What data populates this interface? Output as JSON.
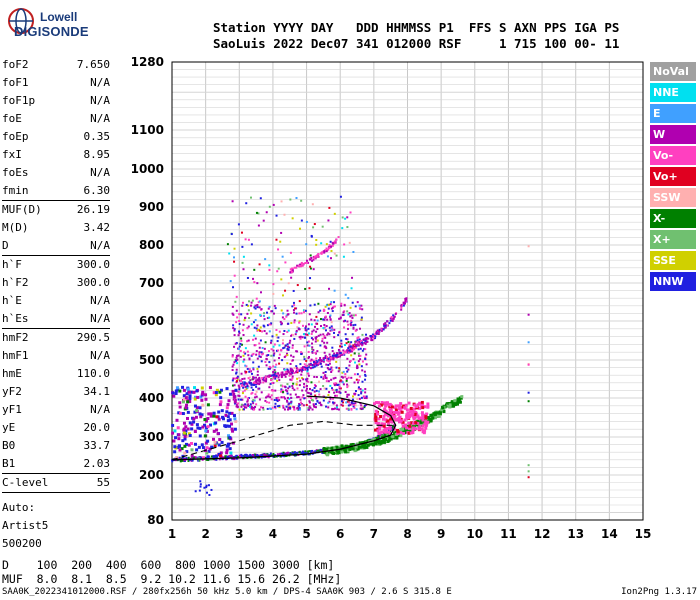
{
  "logo": {
    "line1": "Lowell",
    "line2": "DIGISONDE"
  },
  "header": {
    "labels": "Station YYYY DAY   DDD HHMMSS P1  FFS S AXN PPS IGA PS",
    "values": "SaoLuis 2022 Dec07 341 012000 RSF     1 715 100 00- 11"
  },
  "params": [
    {
      "k": "foF2",
      "v": "7.650"
    },
    {
      "k": "foF1",
      "v": "N/A"
    },
    {
      "k": "foF1p",
      "v": "N/A"
    },
    {
      "k": "foE",
      "v": "N/A"
    },
    {
      "k": "foEp",
      "v": "0.35"
    },
    {
      "k": "fxI",
      "v": "8.95"
    },
    {
      "k": "foEs",
      "v": "N/A"
    },
    {
      "k": "fmin",
      "v": "6.30",
      "sep": true
    },
    {
      "k": "MUF(D)",
      "v": "26.19"
    },
    {
      "k": "M(D)",
      "v": "3.42"
    },
    {
      "k": "D",
      "v": "N/A",
      "sep": true
    },
    {
      "k": "h`F",
      "v": "300.0"
    },
    {
      "k": "h`F2",
      "v": "300.0"
    },
    {
      "k": "h`E",
      "v": "N/A"
    },
    {
      "k": "h`Es",
      "v": "N/A",
      "sep": true
    },
    {
      "k": "hmF2",
      "v": "290.5"
    },
    {
      "k": "hmF1",
      "v": "N/A"
    },
    {
      "k": "hmE",
      "v": "110.0"
    },
    {
      "k": "yF2",
      "v": "34.1"
    },
    {
      "k": "yF1",
      "v": "N/A"
    },
    {
      "k": "yE",
      "v": "20.0"
    },
    {
      "k": "B0",
      "v": "33.7"
    },
    {
      "k": "B1",
      "v": "2.03",
      "sep": true
    },
    {
      "k": "C-level",
      "v": "55",
      "sep": true
    }
  ],
  "auto": [
    "Auto:",
    "Artist5",
    "500200"
  ],
  "legend": [
    {
      "label": "NoVal",
      "color": "#a0a0a0"
    },
    {
      "label": "NNE",
      "color": "#00e0f0"
    },
    {
      "label": "E",
      "color": "#40a0ff"
    },
    {
      "label": "W",
      "color": "#b000b0"
    },
    {
      "label": "Vo-",
      "color": "#ff40c0"
    },
    {
      "label": "Vo+",
      "color": "#e00020"
    },
    {
      "label": "SSW",
      "color": "#ffb0b0"
    },
    {
      "label": "X-",
      "color": "#008000"
    },
    {
      "label": "X+",
      "color": "#70c070"
    },
    {
      "label": "SSE",
      "color": "#d0d000"
    },
    {
      "label": "NNW",
      "color": "#2020e0"
    }
  ],
  "footer": {
    "line1": "D    100  200  400  600  800 1000 1500 3000 [km]",
    "line2": "MUF  8.0  8.1  8.5  9.2 10.2 11.6 15.6 26.2 [MHz]",
    "line3": "SAA0K_2022341012000.RSF / 280fx256h 50 kHz 5.0 km / DPS-4 SAA0K 903 / 2.6 S 315.8 E",
    "version": "Ion2Png 1.3.17"
  },
  "chart_data": {
    "type": "scatter",
    "title": "",
    "xlabel": "",
    "ylabel": "",
    "xlim": [
      1,
      15
    ],
    "ylim": [
      80,
      1280
    ],
    "grid": true,
    "x_ticks": [
      1,
      2,
      3,
      4,
      5,
      6,
      7,
      8,
      9,
      10,
      11,
      12,
      13,
      14,
      15
    ],
    "y_ticks": [
      80,
      200,
      300,
      400,
      500,
      600,
      700,
      800,
      900,
      1000,
      1100,
      1280
    ],
    "y_scale": "nonlinear",
    "o_trace": [
      [
        1.0,
        240
      ],
      [
        2.0,
        243
      ],
      [
        3.0,
        248
      ],
      [
        4.0,
        252
      ],
      [
        5.0,
        258
      ],
      [
        6.0,
        268
      ],
      [
        6.5,
        278
      ],
      [
        7.0,
        292
      ],
      [
        7.4,
        310
      ],
      [
        7.65,
        330
      ]
    ],
    "x_trace": [
      [
        5.5,
        262
      ],
      [
        6.5,
        275
      ],
      [
        7.5,
        300
      ],
      [
        8.2,
        330
      ],
      [
        8.8,
        355
      ],
      [
        9.2,
        380
      ],
      [
        9.6,
        400
      ]
    ],
    "multi_hop": [
      [
        3.0,
        430
      ],
      [
        4.0,
        455
      ],
      [
        5.0,
        480
      ],
      [
        6.0,
        515
      ],
      [
        7.0,
        560
      ],
      [
        7.6,
        610
      ],
      [
        8.0,
        660
      ]
    ],
    "third_hop": [
      [
        4.5,
        730
      ],
      [
        5.5,
        780
      ],
      [
        6.0,
        820
      ]
    ],
    "spread_region": {
      "x": [
        2.8,
        6.8
      ],
      "y": [
        370,
        650
      ]
    },
    "profile_curve": [
      [
        1.0,
        240
      ],
      [
        3.0,
        245
      ],
      [
        5.0,
        255
      ],
      [
        6.0,
        268
      ],
      [
        7.0,
        290
      ],
      [
        7.5,
        305
      ],
      [
        7.65,
        330
      ],
      [
        7.5,
        355
      ],
      [
        7.0,
        380
      ],
      [
        6.0,
        400
      ],
      [
        5.0,
        405
      ]
    ],
    "profile_dash": [
      [
        1.0,
        240
      ],
      [
        3.0,
        290
      ],
      [
        4.5,
        330
      ],
      [
        5.5,
        340
      ],
      [
        6.5,
        330
      ],
      [
        7.65,
        330
      ]
    ]
  }
}
